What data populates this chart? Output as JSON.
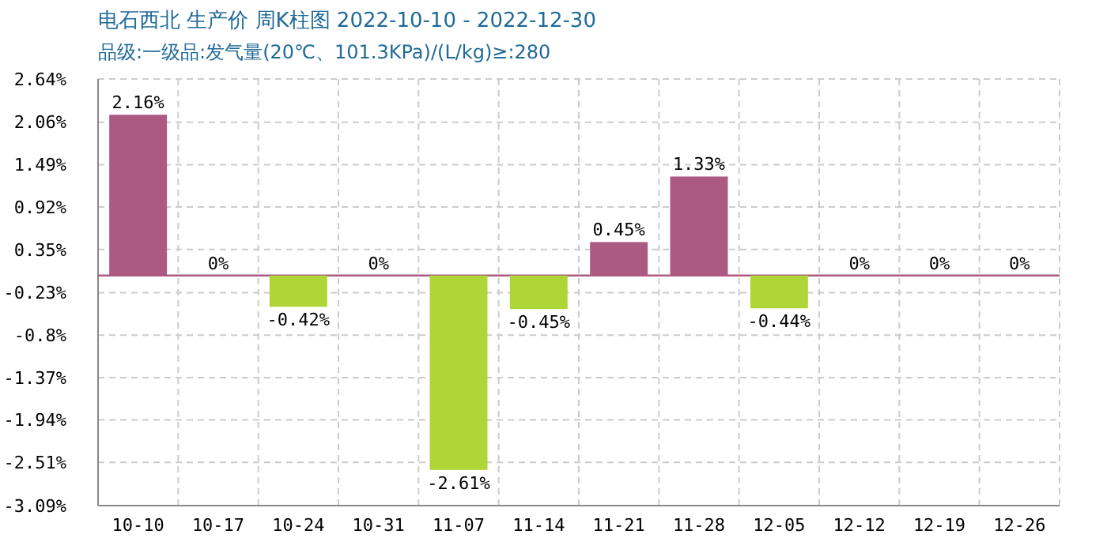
{
  "chart_data": {
    "type": "bar",
    "title": "电石西北 生产价 周K柱图 2022-10-10 - 2022-12-30",
    "subtitle": "品级:一级品:发气量(20℃、101.3KPa)/(L/kg)≥:280",
    "categories": [
      "10-10",
      "10-17",
      "10-24",
      "10-31",
      "11-07",
      "11-14",
      "11-21",
      "11-28",
      "12-05",
      "12-12",
      "12-19",
      "12-26"
    ],
    "values": [
      2.16,
      0,
      -0.42,
      0,
      -2.61,
      -0.45,
      0.45,
      1.33,
      -0.44,
      0,
      0,
      0
    ],
    "colors": [
      "#ad5a82",
      "#ad5a82",
      "#aed636",
      "#ad5a82",
      "#aed636",
      "#aed636",
      "#ad5a82",
      "#ad5a82",
      "#aed636",
      "#ad5a82",
      "#ad5a82",
      "#ad5a82"
    ],
    "value_labels": [
      "2.16%",
      "0%",
      "-0.42%",
      "0%",
      "-2.61%",
      "-0.45%",
      "0.45%",
      "1.33%",
      "-0.44%",
      "0%",
      "0%",
      "0%"
    ],
    "ylim": [
      -3.09,
      2.64
    ],
    "yticks": [
      {
        "value": 2.64,
        "label": "2.64%"
      },
      {
        "value": 2.06,
        "label": "2.06%"
      },
      {
        "value": 1.49,
        "label": "1.49%"
      },
      {
        "value": 0.92,
        "label": "0.92%"
      },
      {
        "value": 0.35,
        "label": "0.35%"
      },
      {
        "value": -0.23,
        "label": "-0.23%"
      },
      {
        "value": -0.8,
        "label": "-0.8%"
      },
      {
        "value": -1.37,
        "label": "-1.37%"
      },
      {
        "value": -1.94,
        "label": "-1.94%"
      },
      {
        "value": -2.51,
        "label": "-2.51%"
      },
      {
        "value": -3.09,
        "label": "-3.09%"
      }
    ],
    "ref_lines": [
      {
        "axis": "y",
        "value": 0,
        "color": "#ad5a82"
      }
    ],
    "grid": true
  }
}
